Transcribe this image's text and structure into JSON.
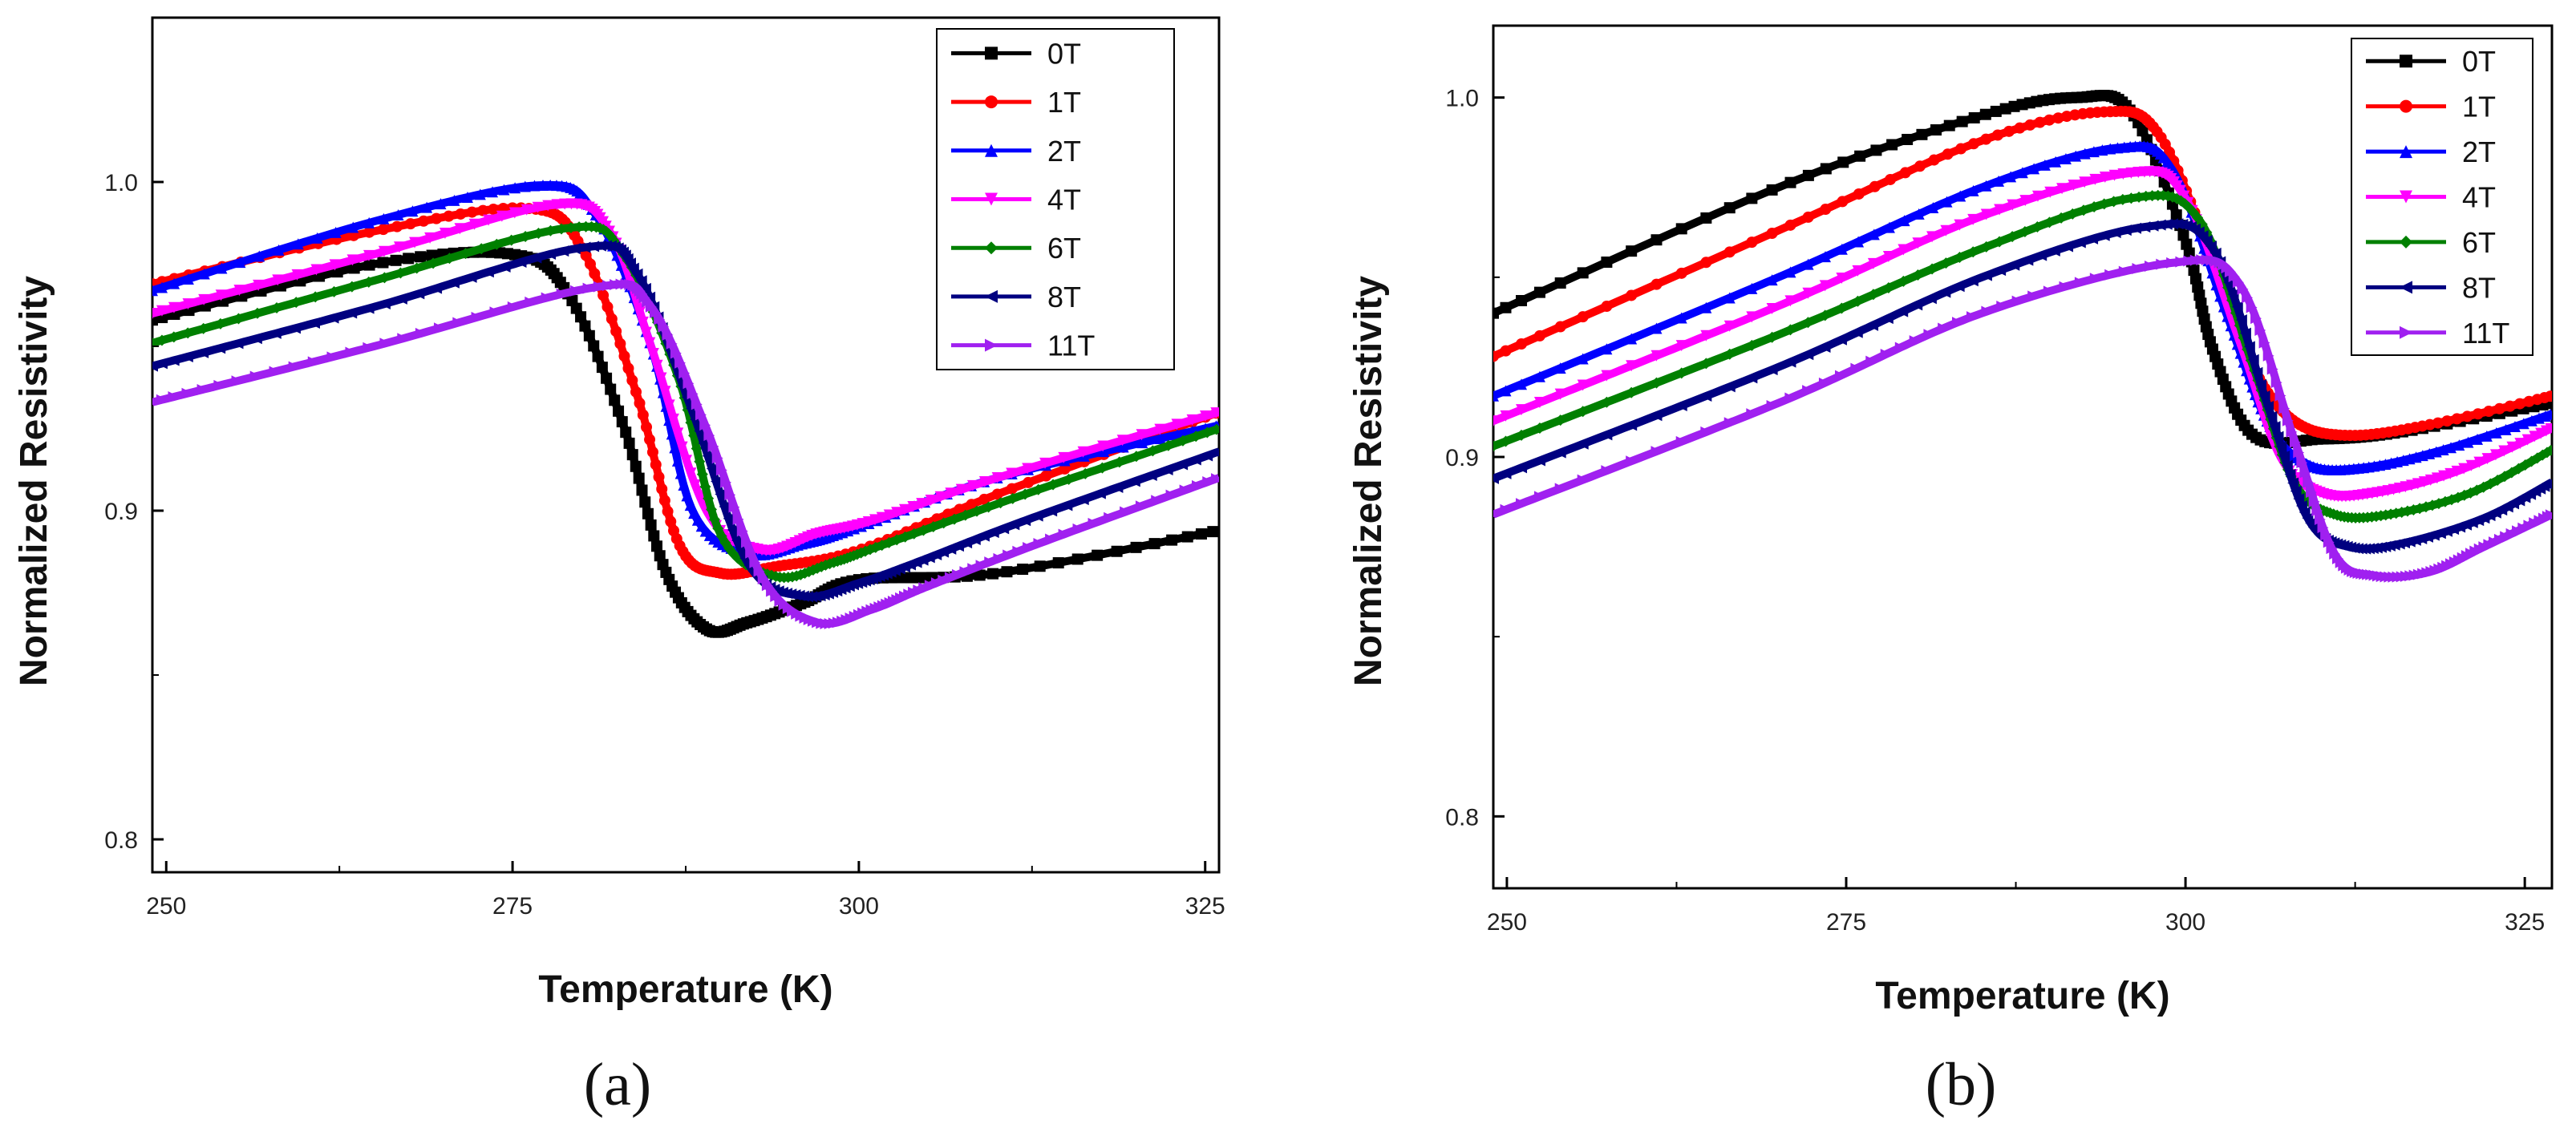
{
  "chart_data": [
    {
      "type": "line",
      "panel_label": "(a)",
      "xlabel": "Temperature (K)",
      "ylabel": "Normalized Resistivity",
      "xlim": [
        249,
        326
      ],
      "ylim": [
        0.79,
        1.05
      ],
      "xticks": [
        250,
        275,
        300,
        325
      ],
      "xtick_labels": [
        "250",
        "275",
        "300",
        "325"
      ],
      "yticks": [
        0.8,
        0.9,
        1.0
      ],
      "ytick_labels": [
        "0.8",
        "0.9",
        "1.0"
      ],
      "legend_position": "top-right",
      "series": [
        {
          "name": "0T",
          "color": "#000000",
          "marker": "square",
          "x": [
            249,
            265,
            275,
            279,
            283,
            286,
            289,
            292,
            296,
            300,
            310,
            326
          ],
          "y": [
            0.958,
            0.975,
            0.978,
            0.966,
            0.926,
            0.882,
            0.864,
            0.866,
            0.872,
            0.879,
            0.881,
            0.894
          ]
        },
        {
          "name": "1T",
          "color": "#ff0000",
          "marker": "circle",
          "x": [
            249,
            265,
            276,
            280,
            284,
            287,
            290,
            294,
            300,
            310,
            326
          ],
          "y": [
            0.969,
            0.985,
            0.992,
            0.98,
            0.935,
            0.89,
            0.881,
            0.883,
            0.888,
            0.905,
            0.93
          ]
        },
        {
          "name": "2T",
          "color": "#0000ff",
          "marker": "triangle-up",
          "x": [
            249,
            265,
            277,
            281,
            285,
            288,
            292,
            296,
            300,
            310,
            326
          ],
          "y": [
            0.967,
            0.988,
            0.999,
            0.99,
            0.95,
            0.9,
            0.887,
            0.89,
            0.895,
            0.91,
            0.926
          ]
        },
        {
          "name": "4T",
          "color": "#ff00ff",
          "marker": "triangle-down",
          "x": [
            249,
            265,
            278,
            282,
            285,
            289,
            293,
            297,
            301,
            310,
            326
          ],
          "y": [
            0.96,
            0.978,
            0.993,
            0.985,
            0.95,
            0.9,
            0.888,
            0.893,
            0.897,
            0.91,
            0.93
          ]
        },
        {
          "name": "6T",
          "color": "#008000",
          "marker": "diamond",
          "x": [
            249,
            265,
            279,
            283,
            287,
            290,
            294,
            298,
            302,
            312,
            326
          ],
          "y": [
            0.951,
            0.97,
            0.986,
            0.978,
            0.94,
            0.893,
            0.88,
            0.884,
            0.89,
            0.905,
            0.925
          ]
        },
        {
          "name": "8T",
          "color": "#000080",
          "marker": "triangle-left",
          "x": [
            249,
            265,
            280,
            284,
            288,
            292,
            296,
            300,
            304,
            312,
            326
          ],
          "y": [
            0.944,
            0.962,
            0.98,
            0.972,
            0.93,
            0.884,
            0.874,
            0.878,
            0.884,
            0.897,
            0.918
          ]
        },
        {
          "name": "11T",
          "color": "#a020f0",
          "marker": "triangle-right",
          "x": [
            249,
            265,
            281,
            285,
            289,
            293,
            297,
            301,
            305,
            313,
            326
          ],
          "y": [
            0.933,
            0.95,
            0.968,
            0.962,
            0.925,
            0.88,
            0.866,
            0.87,
            0.877,
            0.89,
            0.91
          ]
        }
      ]
    },
    {
      "type": "line",
      "panel_label": "(b)",
      "xlabel": "Temperature (K)",
      "ylabel": "Normalized Resistivity",
      "xlim": [
        249,
        327
      ],
      "ylim": [
        0.78,
        1.02
      ],
      "xticks": [
        250,
        275,
        300,
        325
      ],
      "xtick_labels": [
        "250",
        "275",
        "300",
        "325"
      ],
      "yticks": [
        0.8,
        0.9,
        1.0
      ],
      "ytick_labels": [
        "0.8",
        "0.9",
        "1.0"
      ],
      "legend_position": "top-right",
      "series": [
        {
          "name": "0T",
          "color": "#000000",
          "marker": "square",
          "x": [
            249,
            270,
            285,
            292,
            296,
            300,
            302,
            305,
            310,
            316,
            327
          ],
          "y": [
            0.94,
            0.975,
            0.995,
            1.0,
            0.996,
            0.96,
            0.93,
            0.906,
            0.905,
            0.907,
            0.915
          ]
        },
        {
          "name": "1T",
          "color": "#ff0000",
          "marker": "circle",
          "x": [
            249,
            270,
            285,
            294,
            298,
            302,
            305,
            308,
            312,
            318,
            327
          ],
          "y": [
            0.928,
            0.963,
            0.988,
            0.996,
            0.99,
            0.955,
            0.925,
            0.91,
            0.906,
            0.909,
            0.917
          ]
        },
        {
          "name": "2T",
          "color": "#0000ff",
          "marker": "triangle-up",
          "x": [
            249,
            270,
            285,
            295,
            299,
            303,
            306,
            309,
            313,
            319,
            327
          ],
          "y": [
            0.917,
            0.95,
            0.975,
            0.986,
            0.98,
            0.94,
            0.91,
            0.898,
            0.897,
            0.902,
            0.912
          ]
        },
        {
          "name": "4T",
          "color": "#ff00ff",
          "marker": "triangle-down",
          "x": [
            249,
            270,
            285,
            296,
            300,
            304,
            307,
            310,
            314,
            320,
            327
          ],
          "y": [
            0.91,
            0.942,
            0.967,
            0.979,
            0.972,
            0.932,
            0.9,
            0.89,
            0.89,
            0.896,
            0.908
          ]
        },
        {
          "name": "6T",
          "color": "#008000",
          "marker": "diamond",
          "x": [
            249,
            270,
            285,
            296,
            301,
            305,
            308,
            311,
            315,
            321,
            327
          ],
          "y": [
            0.903,
            0.934,
            0.958,
            0.972,
            0.966,
            0.925,
            0.893,
            0.884,
            0.884,
            0.89,
            0.902
          ]
        },
        {
          "name": "8T",
          "color": "#000080",
          "marker": "triangle-left",
          "x": [
            249,
            270,
            285,
            297,
            302,
            306,
            309,
            312,
            316,
            322,
            327
          ],
          "y": [
            0.894,
            0.925,
            0.95,
            0.964,
            0.958,
            0.915,
            0.883,
            0.875,
            0.876,
            0.883,
            0.893
          ]
        },
        {
          "name": "11T",
          "color": "#a020f0",
          "marker": "triangle-right",
          "x": [
            249,
            270,
            285,
            299,
            304,
            308,
            311,
            314,
            318,
            322,
            327
          ],
          "y": [
            0.884,
            0.915,
            0.94,
            0.954,
            0.948,
            0.905,
            0.873,
            0.867,
            0.868,
            0.875,
            0.884
          ]
        }
      ]
    }
  ]
}
